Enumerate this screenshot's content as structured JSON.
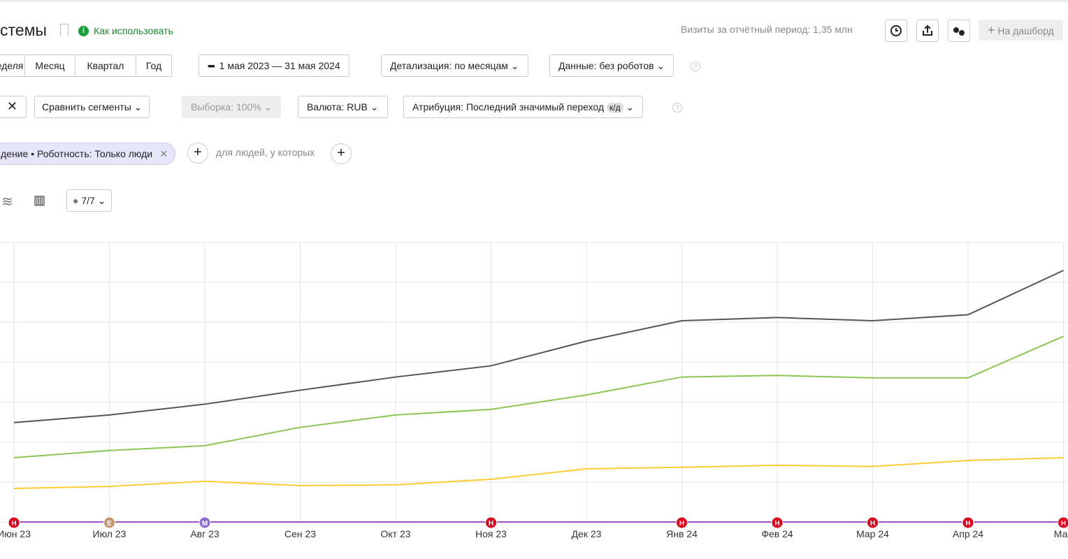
{
  "header": {
    "title": "стемы",
    "help_link": "Как использовать",
    "visits": "Визиты за отчётный период: 1,35 млн",
    "dashboard": "На дашборд"
  },
  "periods": [
    "еделя",
    "Месяц",
    "Квартал",
    "Год"
  ],
  "date_range": "1 мая 2023 — 31 мая 2024",
  "detail": "Детализация: по месяцам",
  "data_filter": "Данные: без роботов",
  "compare": "Сравнить сегменты",
  "sample": "Выборка: 100%",
  "currency": "Валюта: RUB",
  "attribution": "Атрибуция: Последний значимый переход",
  "attribution_badge": "к/д",
  "segment": {
    "filter": "дение • Роботность: Только люди",
    "people_label": "для людей, у которых"
  },
  "notes_count": "7/7",
  "chart_data": {
    "type": "line",
    "categories": [
      "Июн 23",
      "Июл 23",
      "Авг 23",
      "Сен 23",
      "Окт 23",
      "Ноя 23",
      "Дек 23",
      "Янв 24",
      "Фев 24",
      "Мар 24",
      "Апр 24",
      "Май"
    ],
    "ylim": [
      0,
      7
    ],
    "grid": true,
    "series": [
      {
        "color": "#555555",
        "values": [
          2.49,
          2.68,
          2.95,
          3.3,
          3.63,
          3.91,
          4.53,
          5.04,
          5.12,
          5.04,
          5.19,
          6.3
        ]
      },
      {
        "color": "#8bc554",
        "values": [
          1.61,
          1.79,
          1.91,
          2.37,
          2.68,
          2.82,
          3.18,
          3.63,
          3.67,
          3.61,
          3.61,
          4.65
        ]
      },
      {
        "color": "#ffcc33",
        "values": [
          0.84,
          0.89,
          1.02,
          0.91,
          0.93,
          1.07,
          1.33,
          1.37,
          1.42,
          1.39,
          1.54,
          1.61
        ]
      },
      {
        "color": "#a34fc4",
        "values": [
          0,
          0,
          0,
          0,
          0,
          0,
          0,
          0,
          0,
          0,
          0,
          0
        ]
      }
    ],
    "annotations": [
      {
        "category": "Июн 23",
        "label": "Н",
        "color": "#e0001a"
      },
      {
        "category": "Июл 23",
        "label": "Е",
        "color": "#c9956b"
      },
      {
        "category": "Авг 23",
        "label": "М",
        "color": "#8a6bd1"
      },
      {
        "category": "Ноя 23",
        "label": "Н",
        "color": "#e0001a"
      },
      {
        "category": "Янв 24",
        "label": "Н",
        "color": "#e0001a"
      },
      {
        "category": "Фев 24",
        "label": "Н",
        "color": "#e0001a"
      },
      {
        "category": "Мар 24",
        "label": "Н",
        "color": "#e0001a"
      },
      {
        "category": "Апр 24",
        "label": "Н",
        "color": "#e0001a"
      },
      {
        "category": "Май",
        "label": "Н",
        "color": "#e0001a"
      }
    ]
  }
}
